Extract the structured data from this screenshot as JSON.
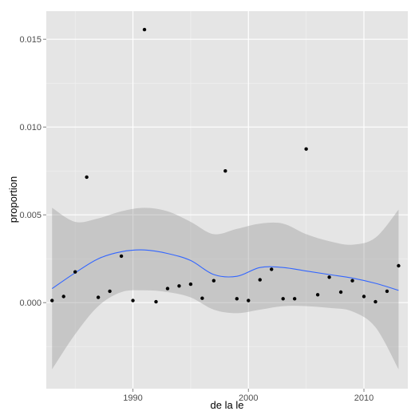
{
  "chart_data": {
    "type": "scatter",
    "xlabel": "de la le",
    "ylabel": "proportion",
    "xlim": [
      1982.5,
      2013.8
    ],
    "ylim": [
      -0.0049,
      0.0166
    ],
    "x_ticks": [
      1990,
      2000,
      2010
    ],
    "x_tick_labels": [
      "1990",
      "2000",
      "2010"
    ],
    "y_ticks": [
      0.0,
      0.005,
      0.01,
      0.015
    ],
    "y_tick_labels": [
      "0.000",
      "0.005",
      "0.010",
      "0.015"
    ],
    "grid": true,
    "legend": "none",
    "series": [
      {
        "kind": "points",
        "color": "#000000",
        "x": [
          1983,
          1984,
          1985,
          1986,
          1987,
          1988,
          1989,
          1990,
          1991,
          1992,
          1993,
          1994,
          1995,
          1996,
          1997,
          1998,
          1999,
          2000,
          2001,
          2002,
          2003,
          2004,
          2005,
          2006,
          2007,
          2008,
          2009,
          2010,
          2011,
          2012,
          2013
        ],
        "y": [
          0.00012,
          0.00035,
          0.00175,
          0.00715,
          0.0003,
          0.00065,
          0.00265,
          0.00012,
          0.01555,
          5e-05,
          0.0008,
          0.00095,
          0.00105,
          0.00025,
          0.00125,
          0.0075,
          0.00022,
          0.00012,
          0.0013,
          0.0019,
          0.00022,
          0.00022,
          0.00875,
          0.00045,
          0.00145,
          0.0006,
          0.00125,
          0.00035,
          5e-05,
          0.00065,
          0.0021
        ]
      },
      {
        "kind": "smooth",
        "color": "#3366FF",
        "band_color": "#999999",
        "x": [
          1983,
          1985,
          1987,
          1989,
          1991,
          1993,
          1995,
          1997,
          1999,
          2001,
          2003,
          2005,
          2007,
          2009,
          2011,
          2013
        ],
        "y": [
          0.0008,
          0.0017,
          0.0025,
          0.0029,
          0.003,
          0.0028,
          0.0024,
          0.0016,
          0.0015,
          0.002,
          0.002,
          0.0018,
          0.0016,
          0.0014,
          0.0011,
          0.0007
        ],
        "lower": [
          -0.0038,
          -0.0018,
          -0.0002,
          0.0006,
          0.0007,
          0.0006,
          0.0003,
          -0.0004,
          -0.0006,
          -0.0004,
          -0.0002,
          -0.0002,
          -0.0003,
          -0.0005,
          -0.0014,
          -0.0038
        ],
        "upper": [
          0.0054,
          0.0046,
          0.0048,
          0.0052,
          0.0054,
          0.0052,
          0.0046,
          0.0039,
          0.0042,
          0.0045,
          0.0045,
          0.0039,
          0.0035,
          0.0033,
          0.0037,
          0.0053
        ]
      }
    ]
  }
}
